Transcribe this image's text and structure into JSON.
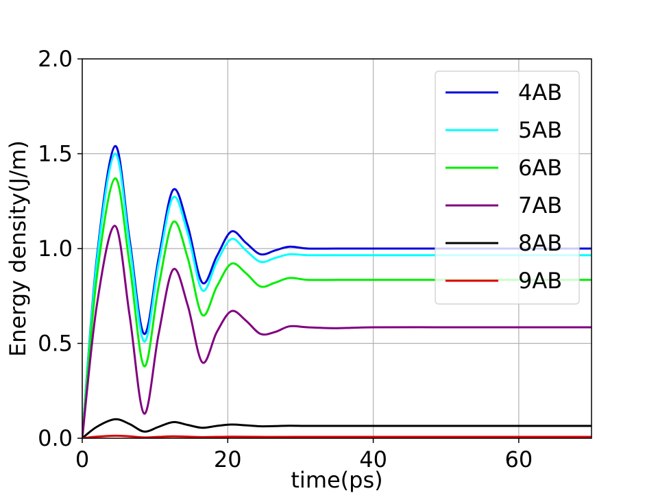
{
  "chart_data": {
    "type": "line",
    "title": "",
    "xlabel": "time(ps)",
    "ylabel": "Energy density(J/m)",
    "xlim": [
      0,
      70
    ],
    "ylim": [
      0,
      2.0
    ],
    "x_ticks": [
      0,
      20,
      40,
      60
    ],
    "y_ticks": [
      0.0,
      0.5,
      1.0,
      1.5,
      2.0
    ],
    "x_tick_labels": [
      "0",
      "20",
      "40",
      "60"
    ],
    "y_tick_labels": [
      "0.0",
      "0.5",
      "1.0",
      "1.5",
      "2.0"
    ],
    "grid": true,
    "legend_position": "top-right",
    "series": [
      {
        "name": "4AB",
        "color": "#0000dd",
        "x": [
          0,
          2,
          4.5,
          6.5,
          8.5,
          10.5,
          12.5,
          14.5,
          16.5,
          18.5,
          20.5,
          22.5,
          24.5,
          26.5,
          28.5,
          31,
          35,
          40,
          50,
          60,
          70
        ],
        "y": [
          0,
          0.95,
          1.54,
          1.05,
          0.55,
          0.95,
          1.31,
          1.12,
          0.82,
          0.96,
          1.09,
          1.03,
          0.97,
          0.99,
          1.01,
          1.0,
          1.0,
          1.0,
          1.0,
          1.0,
          1.0
        ]
      },
      {
        "name": "5AB",
        "color": "#00ffff",
        "x": [
          0,
          2,
          4.5,
          6.5,
          8.5,
          10.5,
          12.5,
          14.5,
          16.5,
          18.5,
          20.5,
          22.5,
          24.5,
          26.5,
          28.5,
          31,
          35,
          40,
          50,
          60,
          70
        ],
        "y": [
          0,
          0.93,
          1.5,
          1.02,
          0.51,
          0.92,
          1.27,
          1.08,
          0.78,
          0.93,
          1.05,
          0.99,
          0.93,
          0.95,
          0.97,
          0.965,
          0.965,
          0.965,
          0.965,
          0.965,
          0.965
        ]
      },
      {
        "name": "6AB",
        "color": "#00ee00",
        "x": [
          0,
          2,
          4.5,
          6.5,
          8.5,
          10.5,
          12.5,
          14.5,
          16.5,
          18.5,
          20.5,
          22.5,
          24.5,
          26.5,
          28.5,
          31,
          35,
          40,
          50,
          60,
          70
        ],
        "y": [
          0,
          0.85,
          1.37,
          0.92,
          0.38,
          0.8,
          1.14,
          0.95,
          0.65,
          0.8,
          0.92,
          0.87,
          0.8,
          0.82,
          0.845,
          0.835,
          0.835,
          0.835,
          0.835,
          0.835,
          0.835
        ]
      },
      {
        "name": "7AB",
        "color": "#800080",
        "x": [
          0,
          2,
          4.5,
          6.5,
          8.5,
          10.5,
          12.5,
          14.5,
          16.5,
          18.5,
          20.5,
          22.5,
          24.5,
          26.5,
          28.5,
          31,
          35,
          40,
          50,
          60,
          70
        ],
        "y": [
          0,
          0.7,
          1.12,
          0.65,
          0.13,
          0.55,
          0.89,
          0.7,
          0.4,
          0.56,
          0.67,
          0.62,
          0.55,
          0.56,
          0.59,
          0.585,
          0.58,
          0.585,
          0.585,
          0.585,
          0.585
        ]
      },
      {
        "name": "8AB",
        "color": "#000000",
        "x": [
          0,
          2,
          4.5,
          6.5,
          8.5,
          10.5,
          12.5,
          14.5,
          16.5,
          18.5,
          20.5,
          22.5,
          24.5,
          26.5,
          28.5,
          31,
          35,
          40,
          50,
          60,
          70
        ],
        "y": [
          0,
          0.06,
          0.1,
          0.075,
          0.035,
          0.06,
          0.085,
          0.07,
          0.055,
          0.065,
          0.072,
          0.068,
          0.063,
          0.064,
          0.066,
          0.065,
          0.065,
          0.065,
          0.065,
          0.065,
          0.065
        ]
      },
      {
        "name": "9AB",
        "color": "#dd0000",
        "x": [
          0,
          2,
          4.5,
          6.5,
          8.5,
          10.5,
          12.5,
          14.5,
          16.5,
          18.5,
          20.5,
          24.5,
          30,
          40,
          50,
          60,
          70
        ],
        "y": [
          0,
          0.008,
          0.013,
          0.01,
          0.004,
          0.007,
          0.01,
          0.008,
          0.006,
          0.007,
          0.008,
          0.007,
          0.007,
          0.007,
          0.007,
          0.007,
          0.007
        ]
      }
    ]
  }
}
